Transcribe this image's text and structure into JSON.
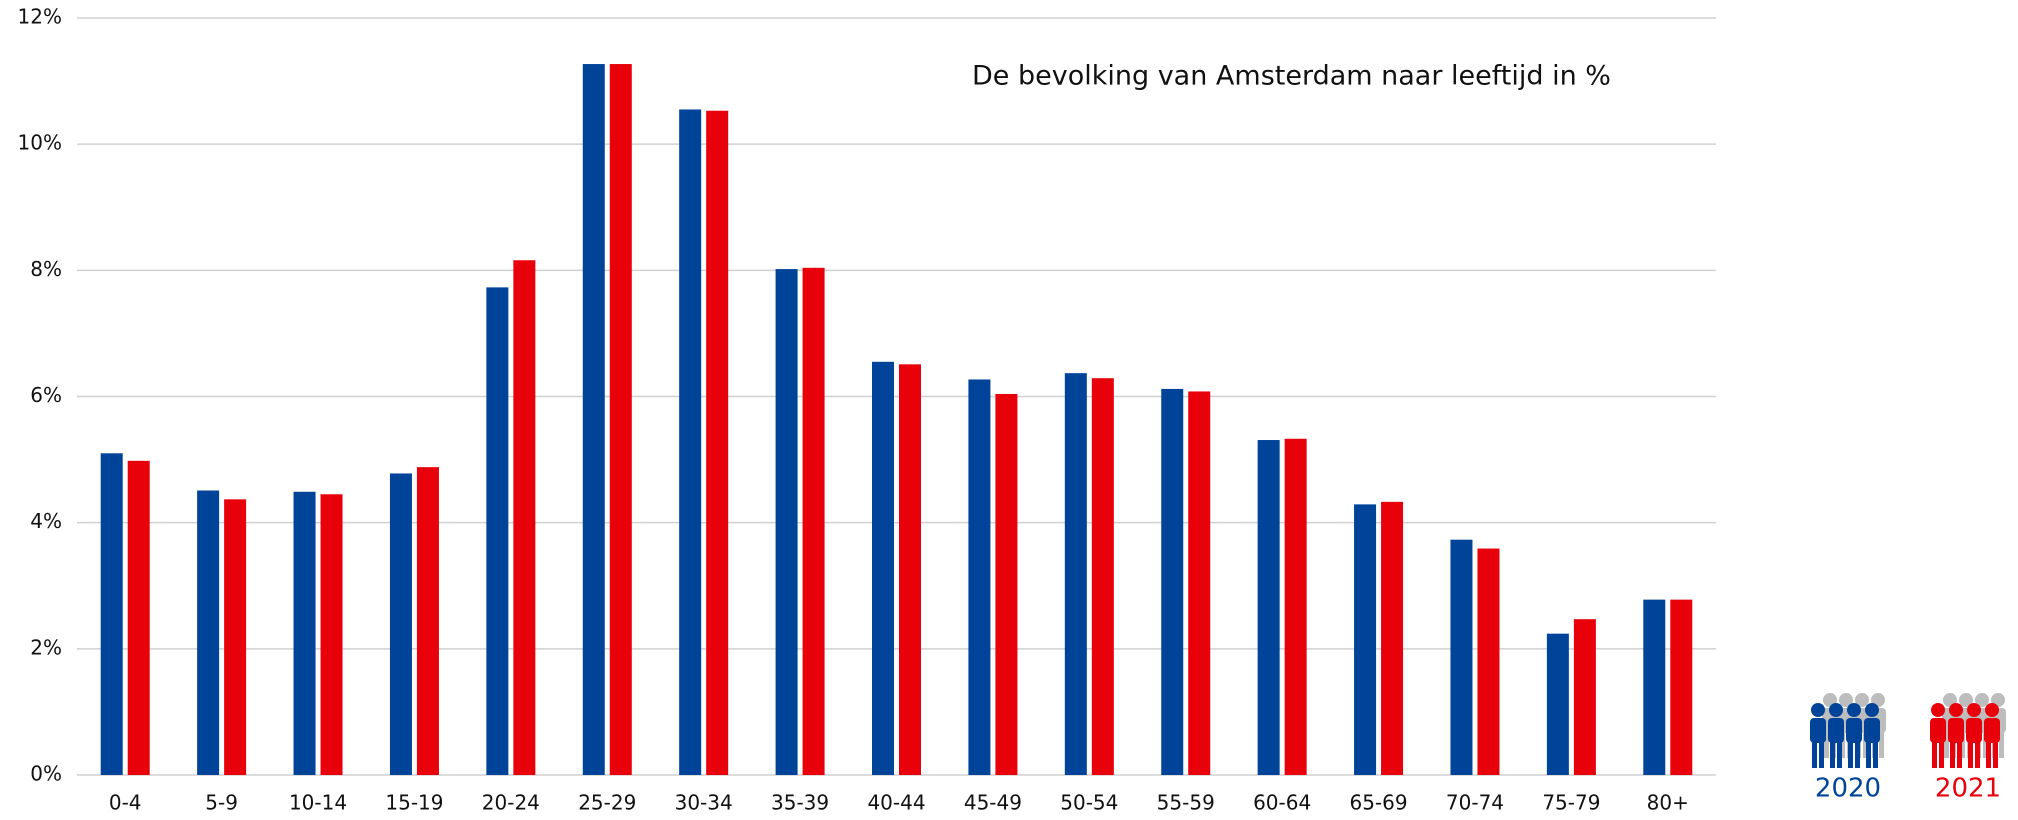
{
  "chart_data": {
    "type": "bar",
    "title": "De bevolking van Amsterdam naar leeftijd in %",
    "categories": [
      "0-4",
      "5-9",
      "10-14",
      "15-19",
      "20-24",
      "25-29",
      "30-34",
      "35-39",
      "40-44",
      "45-49",
      "50-54",
      "55-59",
      "60-64",
      "65-69",
      "70-74",
      "75-79",
      "80+"
    ],
    "series": [
      {
        "name": "2020",
        "color": "#00449a",
        "values": [
          5.1,
          4.51,
          4.49,
          4.78,
          7.73,
          11.27,
          10.55,
          8.02,
          6.55,
          6.27,
          6.37,
          6.12,
          5.31,
          4.29,
          3.73,
          2.24,
          2.78
        ]
      },
      {
        "name": "2021",
        "color": "#e8000b",
        "values": [
          4.98,
          4.37,
          4.45,
          4.88,
          8.16,
          11.27,
          10.53,
          8.04,
          6.51,
          6.04,
          6.29,
          6.08,
          5.33,
          4.33,
          3.59,
          2.47,
          2.78
        ]
      }
    ],
    "ylim": [
      0,
      12
    ],
    "yticks": [
      {
        "value": 0,
        "label": "0%"
      },
      {
        "value": 2,
        "label": "2%"
      },
      {
        "value": 4,
        "label": "4%"
      },
      {
        "value": 6,
        "label": "6%"
      },
      {
        "value": 8,
        "label": "8%"
      },
      {
        "value": 10,
        "label": "10%"
      },
      {
        "value": 12,
        "label": "12%"
      }
    ],
    "grid": true,
    "legend": "bottom-right"
  }
}
